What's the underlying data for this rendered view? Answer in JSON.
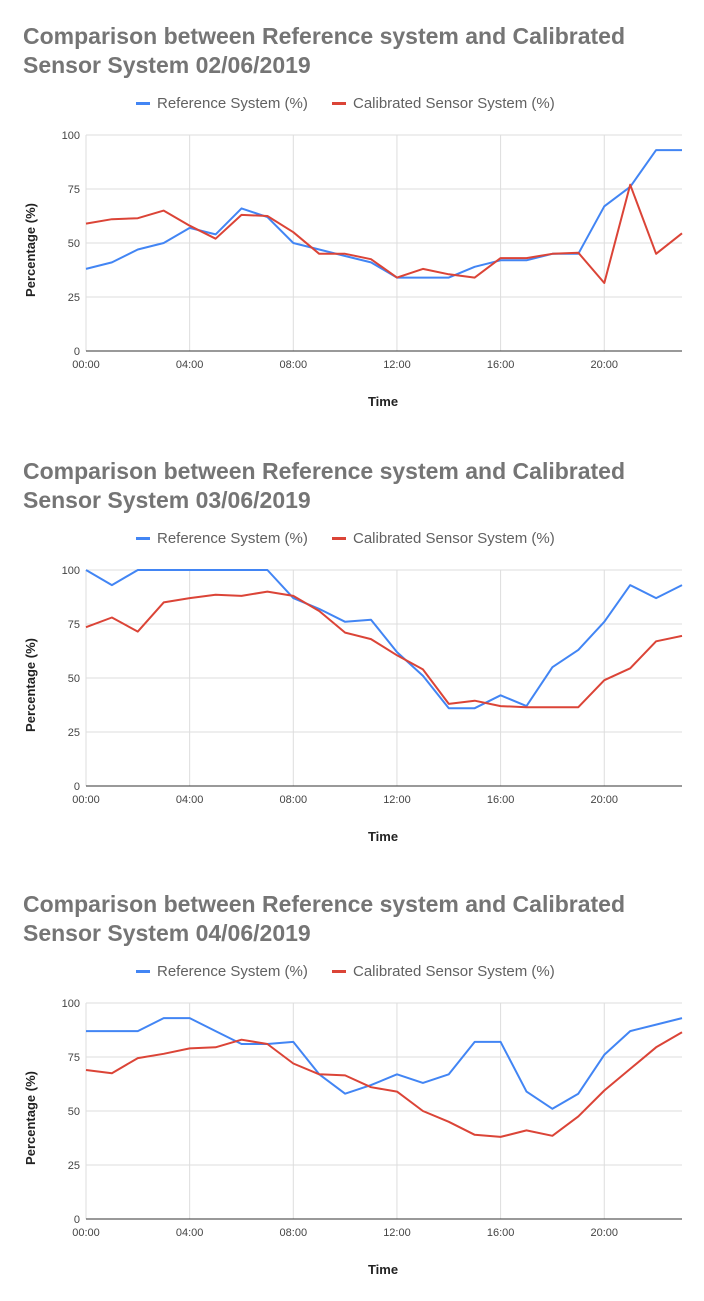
{
  "chart_data": [
    {
      "type": "line",
      "title": "Comparison between  Reference system and Calibrated Sensor System  02/06/2019",
      "xlabel": "Time",
      "ylabel": "Percentage (%)",
      "ylim": [
        0,
        100
      ],
      "yticks": [
        "0",
        "25",
        "50",
        "75",
        "100"
      ],
      "xticks": [
        "00:00",
        "04:00",
        "08:00",
        "12:00",
        "16:00",
        "20:00"
      ],
      "grid": true,
      "legend": "top",
      "series": [
        {
          "name": "Reference System (%)",
          "color": "#4285f4",
          "values": [
            38,
            41,
            47,
            50,
            57,
            54,
            66,
            62,
            50,
            47,
            44,
            41,
            34,
            34,
            34,
            39,
            42,
            42,
            45,
            45,
            67,
            76,
            93,
            93
          ]
        },
        {
          "name": "Calibrated Sensor System (%)",
          "color": "#db4437",
          "values": [
            59,
            61,
            61.5,
            65,
            58,
            52,
            63,
            62.5,
            55,
            45,
            45,
            42.5,
            34,
            38,
            35.5,
            34,
            43,
            43,
            45,
            45.5,
            31.5,
            77,
            45,
            54.5
          ]
        }
      ]
    },
    {
      "type": "line",
      "title": "Comparison between  Reference system and Calibrated Sensor System  03/06/2019",
      "xlabel": "Time",
      "ylabel": "Percentage (%)",
      "ylim": [
        0,
        100
      ],
      "yticks": [
        "0",
        "25",
        "50",
        "75",
        "100"
      ],
      "xticks": [
        "00:00",
        "04:00",
        "08:00",
        "12:00",
        "16:00",
        "20:00"
      ],
      "grid": true,
      "legend": "top",
      "series": [
        {
          "name": "Reference System (%)",
          "color": "#4285f4",
          "values": [
            100,
            93,
            100,
            100,
            100,
            100,
            100,
            100,
            87,
            82,
            76,
            77,
            62,
            51,
            36,
            36,
            42,
            37,
            55,
            63,
            76,
            93,
            87,
            93
          ]
        },
        {
          "name": "Calibrated Sensor System (%)",
          "color": "#db4437",
          "values": [
            73.5,
            78,
            71.5,
            85,
            87,
            88.5,
            88,
            90,
            88,
            81,
            71,
            68,
            60.5,
            54,
            38,
            39.5,
            37,
            36.5,
            36.5,
            36.5,
            49,
            54.5,
            67,
            69.5
          ]
        }
      ]
    },
    {
      "type": "line",
      "title": "Comparison between  Reference system and Calibrated Sensor System  04/06/2019",
      "xlabel": "Time",
      "ylabel": "Percentage (%)",
      "ylim": [
        0,
        100
      ],
      "yticks": [
        "0",
        "25",
        "50",
        "75",
        "100"
      ],
      "xticks": [
        "00:00",
        "04:00",
        "08:00",
        "12:00",
        "16:00",
        "20:00"
      ],
      "grid": true,
      "legend": "top",
      "series": [
        {
          "name": "Reference System (%)",
          "color": "#4285f4",
          "values": [
            87,
            87,
            87,
            93,
            93,
            87,
            81,
            81,
            82,
            67,
            58,
            62,
            67,
            63,
            67,
            82,
            82,
            59,
            51,
            58,
            76,
            87,
            90,
            93
          ]
        },
        {
          "name": "Calibrated Sensor System (%)",
          "color": "#db4437",
          "values": [
            69,
            67.5,
            74.5,
            76.5,
            79,
            79.5,
            83,
            81,
            72,
            67,
            66.5,
            61,
            59,
            50,
            45,
            39,
            38,
            41,
            38.5,
            47.5,
            59.5,
            69.5,
            79.5,
            86.5
          ]
        }
      ]
    }
  ]
}
